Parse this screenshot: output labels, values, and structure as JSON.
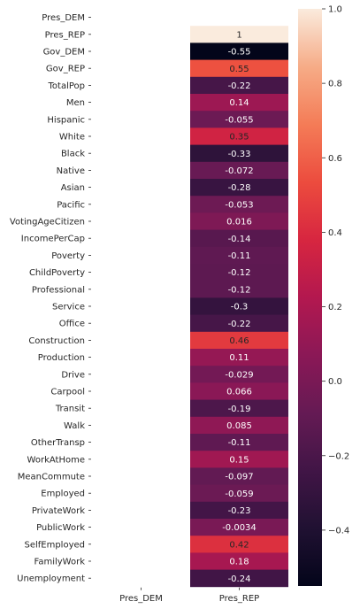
{
  "chart_data": {
    "type": "heatmap",
    "title": "",
    "xlabel": "",
    "ylabel": "",
    "x_categories": [
      "Pres_DEM",
      "Pres_REP"
    ],
    "y_categories": [
      "Pres_DEM",
      "Pres_REP",
      "Gov_DEM",
      "Gov_REP",
      "TotalPop",
      "Men",
      "Hispanic",
      "White",
      "Black",
      "Native",
      "Asian",
      "Pacific",
      "VotingAgeCitizen",
      "IncomePerCap",
      "Poverty",
      "ChildPoverty",
      "Professional",
      "Service",
      "Office",
      "Construction",
      "Production",
      "Drive",
      "Carpool",
      "Transit",
      "Walk",
      "OtherTransp",
      "WorkAtHome",
      "MeanCommute",
      "Employed",
      "PrivateWork",
      "PublicWork",
      "SelfEmployed",
      "FamilyWork",
      "Unemployment"
    ],
    "columns": [
      {
        "name": "Pres_DEM",
        "values": [
          null,
          null,
          null,
          null,
          null,
          null,
          null,
          null,
          null,
          null,
          null,
          null,
          null,
          null,
          null,
          null,
          null,
          null,
          null,
          null,
          null,
          null,
          null,
          null,
          null,
          null,
          null,
          null,
          null,
          null,
          null,
          null,
          null,
          null
        ]
      },
      {
        "name": "Pres_REP",
        "values": [
          null,
          1,
          -0.55,
          0.55,
          -0.22,
          0.14,
          -0.055,
          0.35,
          -0.33,
          -0.072,
          -0.28,
          -0.053,
          0.016,
          -0.14,
          -0.11,
          -0.12,
          -0.12,
          -0.3,
          -0.22,
          0.46,
          0.11,
          -0.029,
          0.066,
          -0.19,
          0.085,
          -0.11,
          0.15,
          -0.097,
          -0.059,
          -0.23,
          -0.0034,
          0.42,
          0.18,
          -0.24
        ]
      }
    ],
    "labels": [
      "",
      "1",
      "-0.55",
      "0.55",
      "-0.22",
      "0.14",
      "-0.055",
      "0.35",
      "-0.33",
      "-0.072",
      "-0.28",
      "-0.053",
      "0.016",
      "-0.14",
      "-0.11",
      "-0.12",
      "-0.12",
      "-0.3",
      "-0.22",
      "0.46",
      "0.11",
      "-0.029",
      "0.066",
      "-0.19",
      "0.085",
      "-0.11",
      "0.15",
      "-0.097",
      "-0.059",
      "-0.23",
      "-0.0034",
      "0.42",
      "0.18",
      "-0.24"
    ],
    "colorbar": {
      "range": [
        -0.55,
        1.0
      ],
      "ticks": [
        -0.4,
        -0.2,
        0.0,
        0.2,
        0.4,
        0.6,
        0.8,
        1.0
      ],
      "tick_labels": [
        "−0.4",
        "−0.2",
        "0.0",
        "0.2",
        "0.4",
        "0.6",
        "0.8",
        "1.0"
      ],
      "colormap": "rocket"
    },
    "grid": false,
    "legend": "colorbar-right"
  }
}
